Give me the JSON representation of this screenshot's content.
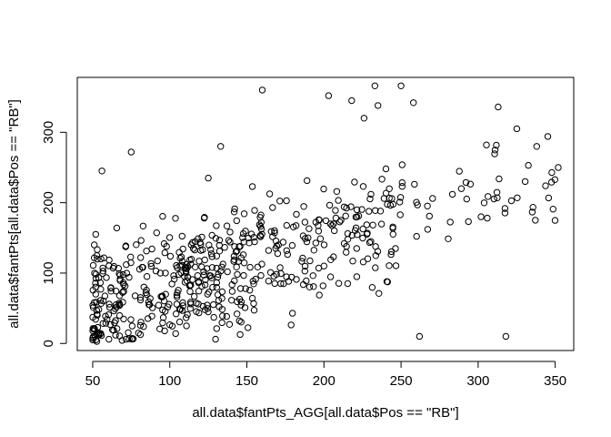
{
  "chart_data": {
    "type": "scatter",
    "title": "",
    "xlabel": "all.data$fantPts_AGG[all.data$Pos == \"RB\"]",
    "ylabel": "all.data$fantPts[all.data$Pos == \"RB\"]",
    "xlim": [
      40,
      362
    ],
    "ylim": [
      -10,
      378
    ],
    "xticks": [
      50,
      100,
      150,
      200,
      250,
      300,
      350
    ],
    "yticks": [
      0,
      100,
      200,
      300
    ],
    "grid": false,
    "legend": "none",
    "x": [],
    "y": []
  }
}
